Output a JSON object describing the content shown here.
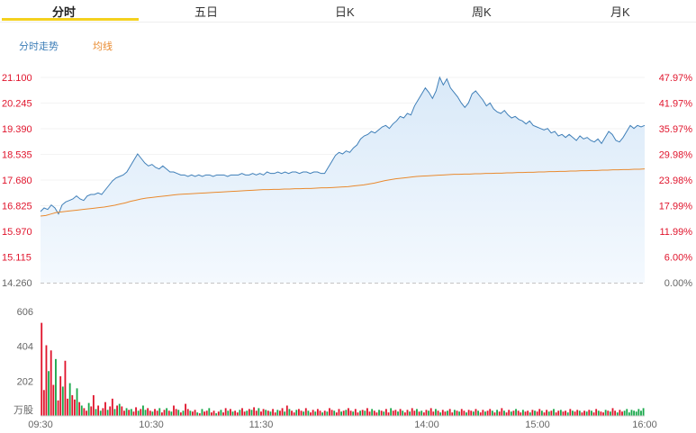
{
  "tabs": [
    {
      "label": "分时",
      "active": true
    },
    {
      "label": "五日",
      "active": false
    },
    {
      "label": "日K",
      "active": false
    },
    {
      "label": "周K",
      "active": false
    },
    {
      "label": "月K",
      "active": false
    }
  ],
  "legend": {
    "price_label": "分时走势",
    "avg_label": "均线",
    "price_color": "#3f7fb8",
    "avg_color": "#e98a2f"
  },
  "colors": {
    "up": "#e0142c",
    "down": "#18a84a",
    "tab_underline": "#f4d11e",
    "area_fill": "#d9e9f8"
  },
  "chart_data": [
    {
      "type": "line",
      "name": "price",
      "y_tick_labels": [
        "21.100",
        "20.245",
        "19.390",
        "18.535",
        "17.680",
        "16.825",
        "15.970",
        "15.115",
        "14.260"
      ],
      "y2_tick_labels": [
        "47.97%",
        "41.97%",
        "35.97%",
        "29.98%",
        "23.98%",
        "17.99%",
        "11.99%",
        "6.00%",
        "0.00%"
      ],
      "ylim": [
        14.26,
        21.1
      ],
      "x_tick_labels": [
        "09:30",
        "10:30",
        "11:30",
        "14:00",
        "15:00",
        "16:00"
      ],
      "series": [
        {
          "values": [
            16.63,
            16.75,
            16.7,
            16.85,
            16.75,
            16.55,
            16.85,
            16.95,
            17.0,
            17.05,
            17.15,
            17.05,
            17.0,
            17.15,
            17.2,
            17.2,
            17.25,
            17.2,
            17.35,
            17.5,
            17.65,
            17.75,
            17.8,
            17.85,
            17.95,
            18.15,
            18.35,
            18.55,
            18.4,
            18.25,
            18.15,
            18.2,
            18.1,
            18.05,
            18.15,
            18.05,
            17.95,
            17.95,
            17.9,
            17.85,
            17.85,
            17.8,
            17.85,
            17.8,
            17.85,
            17.8,
            17.85,
            17.85,
            17.8,
            17.85,
            17.85,
            17.85,
            17.8,
            17.85,
            17.85,
            17.85,
            17.9,
            17.85,
            17.85,
            17.9,
            17.85,
            17.9,
            17.85,
            17.95,
            17.9,
            17.9,
            17.95,
            17.9,
            17.95,
            17.9,
            17.95,
            17.95,
            17.9,
            17.95,
            17.95,
            17.9,
            17.95,
            17.95,
            17.9,
            17.9,
            18.1,
            18.3,
            18.5,
            18.6,
            18.55,
            18.65,
            18.6,
            18.75,
            18.85,
            19.05,
            19.15,
            19.2,
            19.3,
            19.25,
            19.35,
            19.45,
            19.5,
            19.4,
            19.55,
            19.65,
            19.8,
            19.75,
            19.9,
            19.85,
            20.15,
            20.35,
            20.55,
            20.75,
            20.6,
            20.4,
            20.65,
            21.1,
            20.85,
            21.05,
            20.75,
            20.6,
            20.45,
            20.25,
            20.1,
            20.25,
            20.55,
            20.65,
            20.5,
            20.35,
            20.15,
            20.25,
            20.05,
            19.95,
            19.9,
            20.0,
            19.85,
            19.75,
            19.8,
            19.7,
            19.65,
            19.55,
            19.65,
            19.5,
            19.45,
            19.4,
            19.35,
            19.4,
            19.25,
            19.3,
            19.15,
            19.2,
            19.1,
            19.2,
            19.1,
            19.0,
            19.15,
            19.05,
            19.1,
            19.0,
            18.95,
            19.05,
            18.9,
            19.1,
            19.3,
            19.2,
            19.0,
            18.95,
            19.1,
            19.3,
            19.5,
            19.4,
            19.5,
            19.45,
            19.5
          ],
          "color": "#3f7fb8"
        },
        {
          "values": [
            16.48,
            16.5,
            16.55,
            16.6,
            16.62,
            16.64,
            16.66,
            16.68,
            16.7,
            16.72,
            16.74,
            16.76,
            16.78,
            16.81,
            16.84,
            16.88,
            16.92,
            16.97,
            17.01,
            17.05,
            17.08,
            17.1,
            17.12,
            17.14,
            17.16,
            17.18,
            17.2,
            17.21,
            17.22,
            17.23,
            17.24,
            17.25,
            17.26,
            17.27,
            17.28,
            17.29,
            17.3,
            17.31,
            17.32,
            17.33,
            17.34,
            17.35,
            17.36,
            17.36,
            17.37,
            17.37,
            17.38,
            17.38,
            17.39,
            17.39,
            17.4,
            17.4,
            17.41,
            17.42,
            17.42,
            17.43,
            17.44,
            17.45,
            17.46,
            17.48,
            17.5,
            17.52,
            17.55,
            17.58,
            17.62,
            17.66,
            17.69,
            17.72,
            17.74,
            17.76,
            17.78,
            17.8,
            17.81,
            17.82,
            17.83,
            17.84,
            17.85,
            17.86,
            17.87,
            17.87,
            17.88,
            17.88,
            17.89,
            17.89,
            17.9,
            17.9,
            17.91,
            17.91,
            17.92,
            17.92,
            17.93,
            17.93,
            17.94,
            17.94,
            17.95,
            17.95,
            17.96,
            17.96,
            17.97,
            17.97,
            17.98,
            17.98,
            17.99,
            17.99,
            18.0,
            18.0,
            18.01,
            18.01,
            18.02,
            18.02,
            18.03,
            18.03,
            18.04,
            18.04,
            18.05
          ],
          "color": "#e98a2f"
        }
      ]
    },
    {
      "type": "bar",
      "name": "volume",
      "y_tick_labels": [
        "606",
        "404",
        "202"
      ],
      "y_unit_label": "万股",
      "ylim": [
        0,
        606
      ],
      "values": [
        540,
        150,
        410,
        260,
        380,
        180,
        330,
        90,
        230,
        170,
        320,
        100,
        190,
        120,
        95,
        160,
        80,
        60,
        45,
        30,
        75,
        55,
        120,
        40,
        60,
        30,
        45,
        80,
        35,
        55,
        100,
        40,
        60,
        70,
        55,
        30,
        45,
        35,
        40,
        25,
        50,
        30,
        40,
        60,
        35,
        45,
        30,
        25,
        40,
        30,
        45,
        20,
        35,
        45,
        30,
        25,
        60,
        40,
        35,
        20,
        30,
        70,
        40,
        30,
        25,
        35,
        20,
        15,
        40,
        25,
        30,
        45,
        20,
        30,
        15,
        25,
        35,
        20,
        45,
        30,
        40,
        25,
        30,
        20,
        35,
        45,
        25,
        30,
        40,
        35,
        50,
        30,
        45,
        25,
        40,
        35,
        30,
        25,
        40,
        20,
        35,
        30,
        45,
        25,
        60,
        40,
        30,
        20,
        35,
        40,
        30,
        25,
        45,
        30,
        20,
        35,
        25,
        40,
        30,
        20,
        30,
        25,
        45,
        35,
        30,
        20,
        40,
        25,
        30,
        35,
        45,
        30,
        25,
        40,
        20,
        30,
        35,
        30,
        45,
        25,
        40,
        30,
        20,
        35,
        30,
        25,
        40,
        20,
        45,
        30,
        35,
        25,
        40,
        30,
        20,
        35,
        25,
        45,
        30,
        40,
        25,
        30,
        20,
        35,
        30,
        45,
        25,
        40,
        30,
        20,
        35,
        25,
        30,
        40,
        20,
        35,
        30,
        25,
        40,
        30,
        20,
        35,
        30,
        25,
        40,
        30,
        20,
        35,
        25,
        30,
        40,
        30,
        20,
        35,
        25,
        45,
        30,
        20,
        35,
        25,
        30,
        40,
        30,
        20,
        35,
        25,
        30,
        20,
        35,
        30,
        25,
        40,
        30,
        20,
        35,
        25,
        30,
        40,
        20,
        30,
        35,
        25,
        30,
        20,
        40,
        30,
        25,
        35,
        30,
        20,
        30,
        25,
        35,
        30,
        20,
        40,
        30,
        25,
        20,
        35,
        30,
        25,
        45,
        30,
        20,
        35,
        25,
        30,
        40,
        20,
        35,
        30,
        25,
        40,
        30,
        45
      ],
      "directions": [
        "u",
        "u",
        "u",
        "d",
        "u",
        "u",
        "d",
        "u",
        "u",
        "d",
        "u",
        "u",
        "d",
        "u",
        "u",
        "d",
        "u",
        "d",
        "u",
        "u",
        "d",
        "u",
        "u",
        "d",
        "u",
        "d",
        "u",
        "u",
        "d",
        "u",
        "u",
        "d",
        "u",
        "d",
        "u",
        "u",
        "d",
        "u",
        "d",
        "u",
        "u",
        "d",
        "u",
        "d",
        "d",
        "u",
        "u",
        "d",
        "u",
        "u",
        "d",
        "u",
        "u",
        "d",
        "u",
        "d",
        "u",
        "u",
        "d",
        "u",
        "d",
        "u",
        "u",
        "d",
        "u",
        "u",
        "d",
        "u",
        "d",
        "u",
        "u",
        "d",
        "u",
        "u",
        "d",
        "u",
        "d",
        "u",
        "u",
        "d",
        "u",
        "d",
        "u",
        "u",
        "d",
        "u",
        "u",
        "d",
        "u",
        "d",
        "u",
        "u",
        "d",
        "u",
        "u",
        "d",
        "u",
        "d",
        "u",
        "u",
        "d",
        "u",
        "u",
        "d",
        "u",
        "d",
        "u",
        "u",
        "d",
        "u",
        "u",
        "d",
        "u",
        "d",
        "u",
        "u",
        "d",
        "u",
        "u",
        "d",
        "u",
        "d",
        "u",
        "u",
        "d",
        "u",
        "u",
        "d",
        "u",
        "d",
        "u",
        "u",
        "d",
        "u",
        "u",
        "d",
        "u",
        "d",
        "u",
        "u",
        "d",
        "u",
        "u",
        "d",
        "u",
        "d",
        "u",
        "u",
        "d",
        "u",
        "u",
        "d",
        "u",
        "d",
        "u",
        "u",
        "d",
        "u",
        "u",
        "d",
        "u",
        "d",
        "u",
        "u",
        "d",
        "u",
        "u",
        "d",
        "u",
        "d",
        "u",
        "u",
        "d",
        "u",
        "u",
        "d",
        "u",
        "d",
        "u",
        "u",
        "d",
        "u",
        "u",
        "d",
        "u",
        "d",
        "u",
        "u",
        "d",
        "u",
        "u",
        "d",
        "u",
        "d",
        "u",
        "u",
        "d",
        "u",
        "u",
        "d",
        "u",
        "d",
        "u",
        "u",
        "d",
        "u",
        "u",
        "d",
        "u",
        "d",
        "u",
        "u",
        "d",
        "u",
        "u",
        "d",
        "u",
        "d",
        "u",
        "u",
        "d",
        "u",
        "u",
        "d",
        "u",
        "d",
        "u",
        "u",
        "d",
        "u",
        "u",
        "d",
        "u",
        "d",
        "u",
        "u",
        "d",
        "u",
        "u",
        "d",
        "u",
        "d",
        "u",
        "u",
        "d",
        "u",
        "u"
      ]
    }
  ]
}
